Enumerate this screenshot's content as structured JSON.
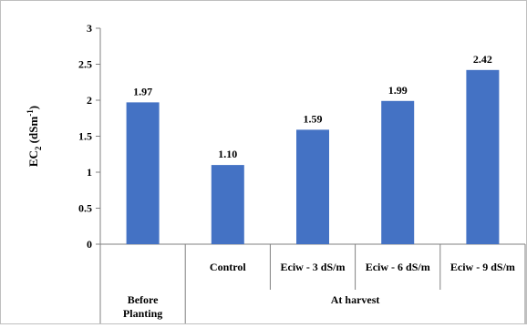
{
  "chart_data": {
    "type": "bar",
    "ylabel": "EC",
    "ylabel_sub": "2",
    "ylabel_unit": "(dSm",
    "ylabel_sup": "-1",
    "ylabel_close": ")",
    "ylim": [
      0,
      3
    ],
    "yticks": [
      "0",
      "0.5",
      "1",
      "1.5",
      "2",
      "2.5",
      "3"
    ],
    "grid": false,
    "bar_color": "#4472C4",
    "categories": [
      {
        "label": [
          "Before",
          "Planting"
        ],
        "group": "before"
      },
      {
        "label": [
          "Control"
        ],
        "group": "harvest"
      },
      {
        "label": [
          "Eciw - 3 dS/m"
        ],
        "group": "harvest"
      },
      {
        "label": [
          "Eciw - 6 dS/m"
        ],
        "group": "harvest"
      },
      {
        "label": [
          "Eciw - 9 dS/m"
        ],
        "group": "harvest"
      }
    ],
    "values": [
      1.97,
      1.1,
      1.59,
      1.99,
      2.42
    ],
    "value_labels": [
      "1.97",
      "1.10",
      "1.59",
      "1.99",
      "2.42"
    ],
    "group_label": "At harvest"
  }
}
